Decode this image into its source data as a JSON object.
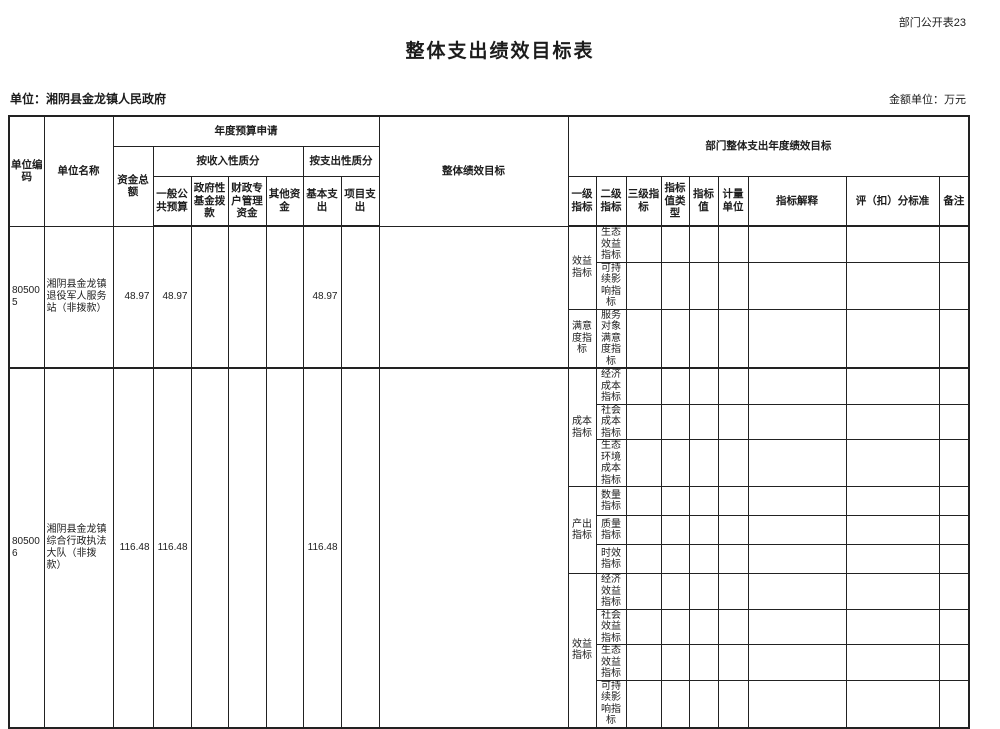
{
  "page": {
    "corner_label": "部门公开表23",
    "title": "整体支出绩效目标表",
    "unit_label": "单位：湘阴县金龙镇人民政府",
    "amount_unit_label": "金额单位：万元"
  },
  "table": {
    "headers": {
      "unit_code": "单位编码",
      "unit_name": "单位名称",
      "annual_budget": "年度预算申请",
      "total_funds": "资金总额",
      "by_income": "按收入性质分",
      "general_public_budget": "一般公共预算",
      "gov_fund": "政府性基金拨款",
      "fiscal_special_account": "财政专户管理资金",
      "other_funds": "其他资金",
      "by_expenditure": "按支出性质分",
      "basic_expenditure": "基本支出",
      "project_expenditure": "项目支出",
      "overall_target": "整体绩效目标",
      "dept_annual_target": "部门整体支出年度绩效目标",
      "level1": "一级指标",
      "level2": "二级指标",
      "level3": "三级指标",
      "value_type": "指标值类型",
      "value": "指标值",
      "measure_unit": "计量单位",
      "explanation": "指标解释",
      "scoring": "评（扣）分标准",
      "remarks": "备注"
    },
    "rows": [
      {
        "code": "805005",
        "name": "湘阴县金龙镇退役军人服务站（非拨款）",
        "total": "48.97",
        "general_public": "48.97",
        "basic": "48.97",
        "groups": [
          {
            "l1": "效益指标",
            "l2": [
              "生态效益指标",
              "可持续影响指标"
            ]
          },
          {
            "l1": "满意度指标",
            "l2": [
              "服务对象满意度指标"
            ]
          }
        ]
      },
      {
        "code": "805006",
        "name": "湘阴县金龙镇综合行政执法大队（非拨款）",
        "total": "116.48",
        "general_public": "116.48",
        "basic": "116.48",
        "groups": [
          {
            "l1": "成本指标",
            "l2": [
              "经济成本指标",
              "社会成本指标",
              "生态环境成本指标"
            ]
          },
          {
            "l1": "产出指标",
            "l2": [
              "数量指标",
              "质量指标",
              "时效指标"
            ]
          },
          {
            "l1": "效益指标",
            "l2": [
              "经济效益指标",
              "社会效益指标",
              "生态效益指标",
              "可持续影响指标"
            ]
          }
        ]
      }
    ]
  }
}
